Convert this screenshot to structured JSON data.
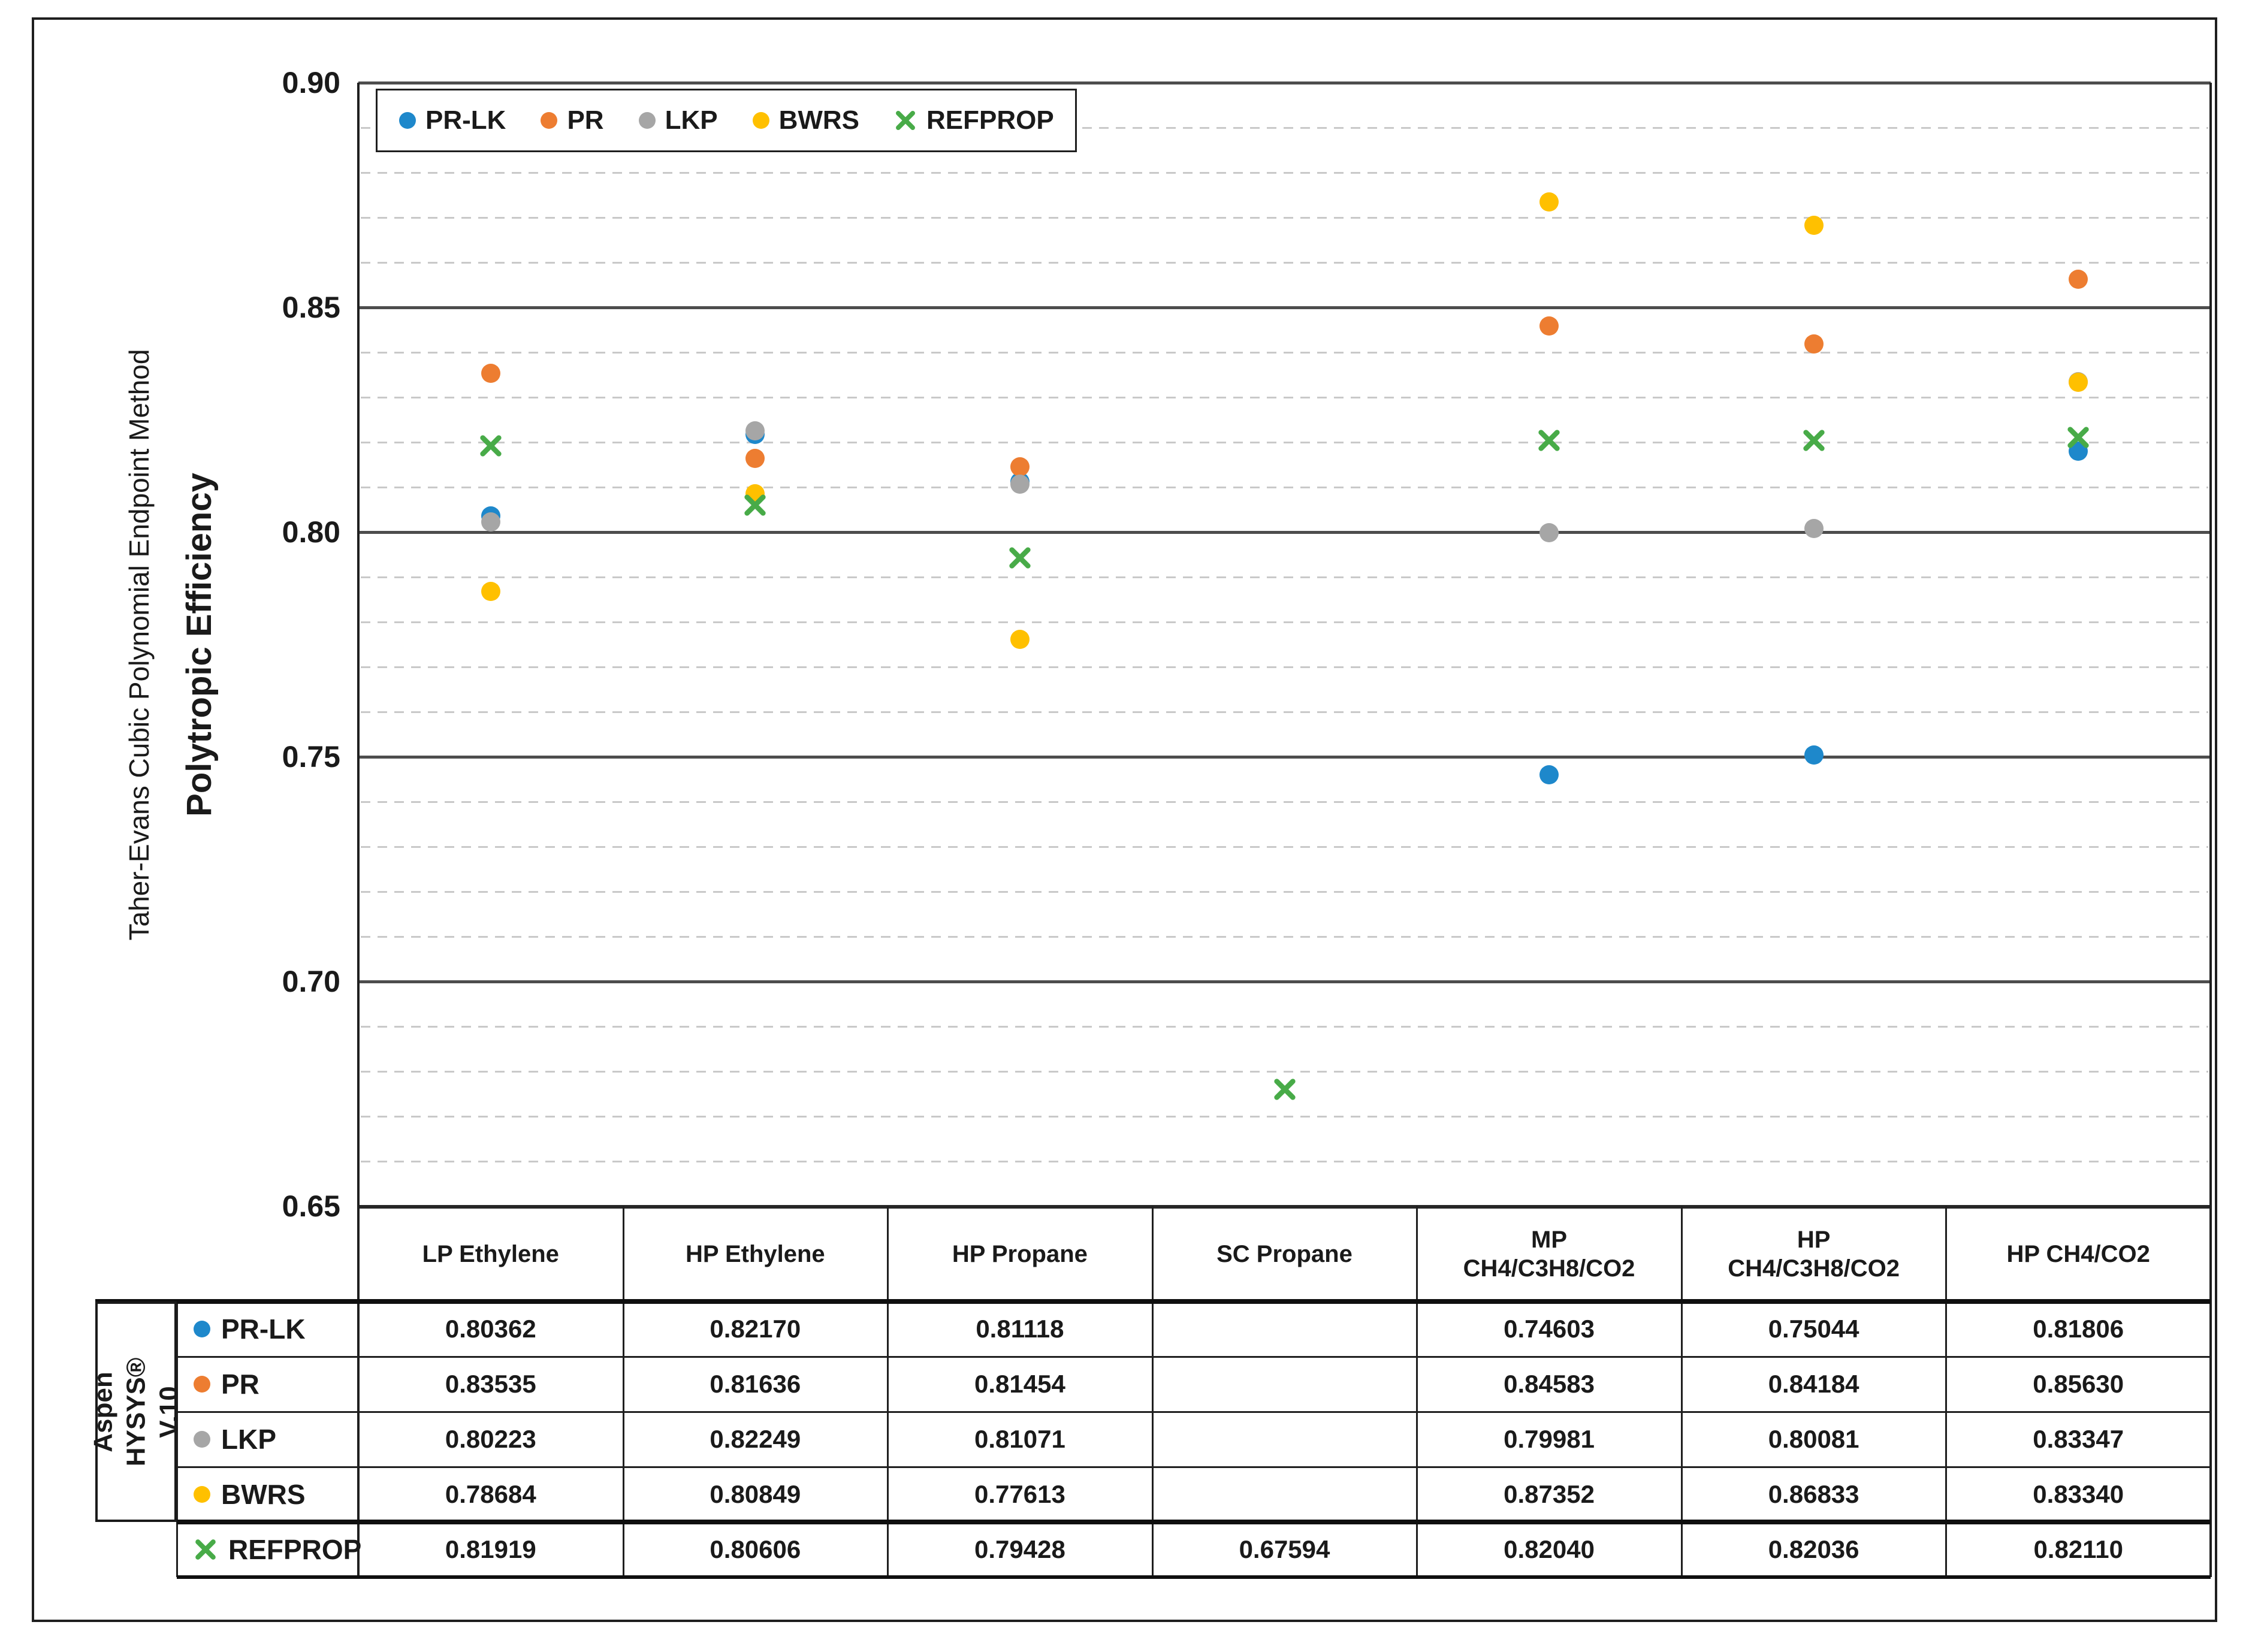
{
  "figure": {
    "y_axis": {
      "title_line1": "Taher-Evans Cubic Polynomial Endpoint Method",
      "title_line2": "Polytropic Efficiency",
      "ticks": [
        "0.90",
        "0.85",
        "0.80",
        "0.75",
        "0.70",
        "0.65"
      ]
    },
    "legend": {
      "items": [
        {
          "label": "PR-LK",
          "marker": "circle",
          "color": "#1E88CB"
        },
        {
          "label": "PR",
          "marker": "circle",
          "color": "#ED7D31"
        },
        {
          "label": "LKP",
          "marker": "circle",
          "color": "#A6A6A6"
        },
        {
          "label": "BWRS",
          "marker": "circle",
          "color": "#FFC000"
        },
        {
          "label": "REFPROP",
          "marker": "x",
          "color": "#48AB48"
        }
      ]
    }
  },
  "chart_data": {
    "type": "scatter",
    "title": "",
    "xlabel": "",
    "ylabel": "Polytropic Efficiency",
    "ylabel_secondary": "Taher-Evans Cubic Polynomial Endpoint Method",
    "ylim": [
      0.65,
      0.9
    ],
    "ytick_major_step": 0.05,
    "ytick_minor_step": 0.01,
    "grid": "major-solid, minor-dashed",
    "legend_position": "top-left",
    "categories": [
      "LP Ethylene",
      "HP Ethylene",
      "HP Propane",
      "SC Propane",
      "MP CH4/C3H8/CO2",
      "HP CH4/C3H8/CO2",
      "HP CH4/CO2"
    ],
    "series": [
      {
        "name": "PR-LK",
        "marker": "circle",
        "color": "#1E88CB",
        "values": [
          0.80362,
          0.8217,
          0.81118,
          null,
          0.74603,
          0.75044,
          0.81806
        ]
      },
      {
        "name": "PR",
        "marker": "circle",
        "color": "#ED7D31",
        "values": [
          0.83535,
          0.81636,
          0.81454,
          null,
          0.84583,
          0.84184,
          0.8563
        ]
      },
      {
        "name": "LKP",
        "marker": "circle",
        "color": "#A6A6A6",
        "values": [
          0.80223,
          0.82249,
          0.81071,
          null,
          0.79981,
          0.80081,
          0.83347
        ]
      },
      {
        "name": "BWRS",
        "marker": "circle",
        "color": "#FFC000",
        "values": [
          0.78684,
          0.80849,
          0.77613,
          null,
          0.87352,
          0.86833,
          0.8334
        ]
      },
      {
        "name": "REFPROP",
        "marker": "x",
        "color": "#48AB48",
        "values": [
          0.81919,
          0.80606,
          0.79428,
          0.67594,
          0.8204,
          0.82036,
          0.8211
        ]
      }
    ]
  },
  "table": {
    "group_label": "Aspen HYSYS®\nV.10",
    "column_headers": [
      "LP Ethylene",
      "HP Ethylene",
      "HP Propane",
      "SC Propane",
      "MP\nCH4/C3H8/CO2",
      "HP\nCH4/C3H8/CO2",
      "HP CH4/CO2"
    ],
    "rows": [
      {
        "label": "PR-LK",
        "in_group": true,
        "values": [
          "0.80362",
          "0.82170",
          "0.81118",
          "",
          "0.74603",
          "0.75044",
          "0.81806"
        ]
      },
      {
        "label": "PR",
        "in_group": true,
        "values": [
          "0.83535",
          "0.81636",
          "0.81454",
          "",
          "0.84583",
          "0.84184",
          "0.85630"
        ]
      },
      {
        "label": "LKP",
        "in_group": true,
        "values": [
          "0.80223",
          "0.82249",
          "0.81071",
          "",
          "0.79981",
          "0.80081",
          "0.83347"
        ]
      },
      {
        "label": "BWRS",
        "in_group": true,
        "values": [
          "0.78684",
          "0.80849",
          "0.77613",
          "",
          "0.87352",
          "0.86833",
          "0.83340"
        ]
      },
      {
        "label": "REFPROP",
        "in_group": false,
        "values": [
          "0.81919",
          "0.80606",
          "0.79428",
          "0.67594",
          "0.82040",
          "0.82036",
          "0.82110"
        ]
      }
    ]
  }
}
